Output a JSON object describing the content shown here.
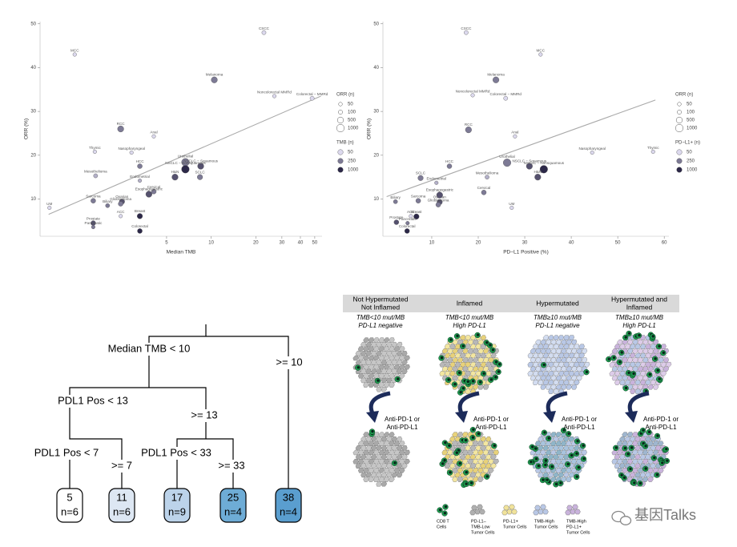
{
  "chart_data": [
    {
      "type": "scatter",
      "x_label": "Median TMB",
      "y_label": "ORR (%)",
      "xscale": "log",
      "xlim": [
        0.7,
        56
      ],
      "ylim": [
        1.5,
        50.5
      ],
      "xticks": [
        5,
        10,
        20,
        30,
        40,
        50
      ],
      "yticks": [
        10,
        20,
        30,
        40,
        50
      ],
      "labels": [
        "MCC",
        "CSCC",
        "Melanoma",
        "Noncolorectal MMRd",
        "Colorectal − MMRd",
        "RCC",
        "Anal",
        "Thymic",
        "Nasopharyngeal",
        "HCC",
        "Urothelial",
        "NSCLC − Squamous",
        "Mesothelioma",
        "NSCLC − Nonsquamous",
        "H&N",
        "SCLC",
        "Endometrial",
        "Cervical",
        "Sarcoma",
        "Ovarian",
        "Esophagogastric",
        "Glioblastoma",
        "Biliary",
        "ACC",
        "Breast",
        "UM",
        "Prostate",
        "Pancreatic",
        "Colorectal"
      ],
      "x": [
        1.2,
        22.7,
        10.5,
        26.7,
        48,
        2.45,
        4.1,
        1.64,
        2.9,
        3.3,
        6.7,
        8.5,
        1.66,
        6.7,
        5.7,
        8.4,
        3.3,
        4.1,
        1.6,
        2.5,
        3.8,
        2.45,
        2.0,
        2.45,
        3.3,
        0.81,
        1.6,
        1.6,
        3.3
      ],
      "values": [
        43,
        48,
        37.2,
        33.5,
        33,
        26,
        24.3,
        20.8,
        20.6,
        17.5,
        18.4,
        17.5,
        15.3,
        16.8,
        15,
        15,
        14.2,
        11.7,
        9.6,
        9.4,
        11.1,
        8.9,
        8.5,
        6.1,
        6.1,
        8,
        4.5,
        3.6,
        2.7
      ],
      "sizes": [
        50,
        100,
        500,
        50,
        100,
        500,
        50,
        50,
        50,
        200,
        1000,
        500,
        100,
        1000,
        500,
        300,
        50,
        200,
        200,
        300,
        500,
        200,
        100,
        50,
        300,
        50,
        200,
        50,
        200
      ],
      "shades": [
        50,
        50,
        250,
        50,
        50,
        250,
        50,
        50,
        50,
        250,
        250,
        500,
        100,
        1000,
        500,
        250,
        100,
        250,
        250,
        500,
        500,
        250,
        250,
        50,
        1000,
        50,
        500,
        250,
        1000
      ],
      "trend": {
        "x": [
          0.8,
          55
        ],
        "y": [
          6.5,
          33.5
        ]
      },
      "size_legend": {
        "title": "ORR (n)",
        "values": [
          50,
          100,
          500,
          1000
        ]
      },
      "color_legend": {
        "title": "TMB (n)",
        "values": [
          50,
          250,
          1000
        ],
        "colors": [
          "#dcd9ee",
          "#2c2848"
        ]
      }
    },
    {
      "type": "scatter",
      "x_label": "PD−L1 Positive (%)",
      "y_label": "ORR (%)",
      "xlim": [
        -0.5,
        61
      ],
      "ylim": [
        1.5,
        50.5
      ],
      "xticks": [
        10,
        20,
        30,
        40,
        50,
        60
      ],
      "yticks": [
        10,
        20,
        30,
        40,
        50
      ],
      "labels": [
        "MCC",
        "CSCC",
        "Melanoma",
        "Noncolorectal MMRd",
        "Colorectal − MMRd",
        "RCC",
        "Anal",
        "Thymic",
        "Nasopharyngeal",
        "HCC",
        "Urothelial",
        "NSCLC − Squamous",
        "Mesothelioma",
        "NSCLC − Nonsquamous",
        "H&N",
        "SCLC",
        "Endometrial",
        "Cervical",
        "Sarcoma",
        "Ovarian",
        "Esophagogastric",
        "Glioblastoma",
        "Biliary",
        "ACC",
        "Breast",
        "UM",
        "Prostate",
        "Pancreatic",
        "Colorectal"
      ],
      "x": [
        33.4,
        17.4,
        23.8,
        18.8,
        25.9,
        17.9,
        27.9,
        57.6,
        44.5,
        13.8,
        26.2,
        31,
        21.9,
        34.1,
        32.8,
        7.6,
        11,
        21.2,
        7.1,
        11.7,
        11.7,
        11.4,
        2.2,
        5.5,
        6.7,
        27.2,
        2.4,
        4.8,
        4.7
      ],
      "values": [
        43,
        48,
        37.2,
        33.7,
        33,
        25.8,
        24.3,
        20.8,
        20.6,
        17.5,
        18.3,
        17.5,
        15,
        16.8,
        15,
        14.8,
        13.7,
        11.5,
        9.6,
        9.3,
        10.9,
        8.7,
        9.4,
        6.1,
        6,
        8,
        4.7,
        4.5,
        2.7
      ],
      "sizes": [
        50,
        100,
        500,
        50,
        100,
        500,
        50,
        50,
        50,
        200,
        1000,
        500,
        100,
        1000,
        500,
        300,
        50,
        200,
        200,
        300,
        500,
        200,
        100,
        50,
        300,
        50,
        200,
        50,
        200
      ],
      "shades": [
        50,
        50,
        250,
        50,
        50,
        250,
        50,
        50,
        50,
        250,
        250,
        500,
        100,
        1000,
        500,
        250,
        100,
        250,
        250,
        500,
        500,
        250,
        250,
        50,
        1000,
        50,
        500,
        250,
        1000
      ],
      "trend": {
        "x": [
          0.3,
          58.1
        ],
        "y": [
          10.55,
          32.6
        ]
      },
      "size_legend": {
        "title": "ORR (n)",
        "values": [
          50,
          100,
          500,
          1000
        ]
      },
      "color_legend": {
        "title": "PD−L1+ (n)",
        "values": [
          50,
          250,
          1000
        ],
        "colors": [
          "#dcd9ee",
          "#2c2848"
        ]
      }
    }
  ],
  "tree": {
    "splits": [
      "Median TMB < 10",
      ">= 10",
      "PDL1 Pos < 13",
      ">= 13",
      "PDL1 Pos < 7",
      ">= 7",
      "PDL1 Pos < 33",
      ">= 33"
    ],
    "leaves": [
      {
        "value": "5",
        "n": "n=6"
      },
      {
        "value": "11",
        "n": "n=6"
      },
      {
        "value": "17",
        "n": "n=9"
      },
      {
        "value": "25",
        "n": "n=4"
      },
      {
        "value": "38",
        "n": "n=4"
      }
    ]
  },
  "diagram": {
    "columns": [
      {
        "title": [
          "Not Hypermutated",
          "Not Inflamed"
        ],
        "subtitle": [
          "TMB<10 mut/MB",
          "PD-L1 negative"
        ]
      },
      {
        "title": [
          "Inflamed"
        ],
        "subtitle": [
          "TMB<10 mut/MB",
          "High PD-L1"
        ]
      },
      {
        "title": [
          "Hypermutated"
        ],
        "subtitle": [
          "TMB≥10 mut/MB",
          "PD-L1 negative"
        ]
      },
      {
        "title": [
          "Hypermutated and",
          "Inflamed"
        ],
        "subtitle": [
          "TMB≥10 mut/MB",
          "High PD-L1"
        ]
      }
    ],
    "therapy": [
      "Anti-PD-1 or",
      "Anti-PD-L1"
    ],
    "legend": [
      [
        "CD8 T",
        "Cells"
      ],
      [
        "PD-L1–",
        "TMB-Low",
        "Tumor Cells"
      ],
      [
        "PD-L1+",
        "Tumor Cells"
      ],
      [
        "TMB-High",
        "Tumor Cells"
      ],
      [
        "TMB-High",
        "PD-L1+",
        "Tumor Cells"
      ]
    ]
  },
  "watermark": "基因Talks"
}
